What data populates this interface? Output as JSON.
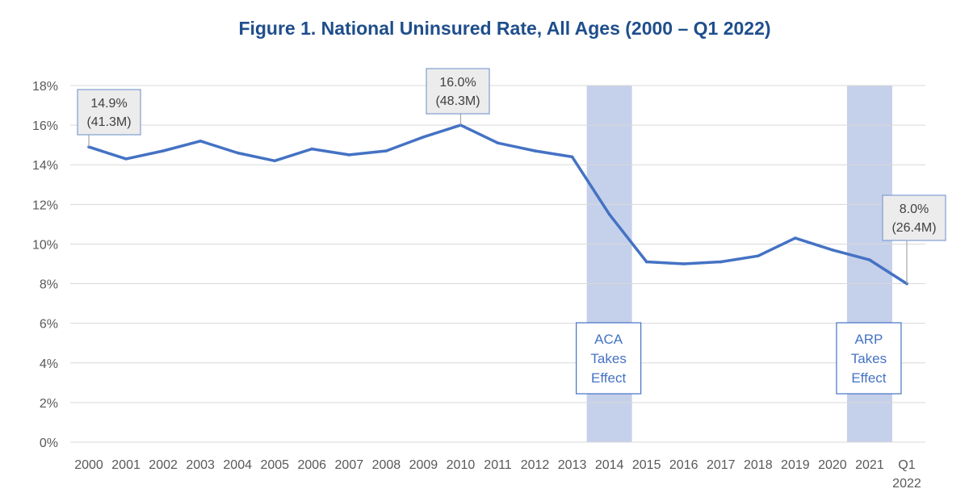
{
  "chart_data": {
    "type": "line",
    "title": "Figure 1. National Uninsured Rate, All Ages (2000 – Q1 2022)",
    "categories": [
      "2000",
      "2001",
      "2002",
      "2003",
      "2004",
      "2005",
      "2006",
      "2007",
      "2008",
      "2009",
      "2010",
      "2011",
      "2012",
      "2013",
      "2014",
      "2015",
      "2016",
      "2017",
      "2018",
      "2019",
      "2020",
      "2021",
      "Q1 2022"
    ],
    "category_lines": [
      [
        "2000"
      ],
      [
        "2001"
      ],
      [
        "2002"
      ],
      [
        "2003"
      ],
      [
        "2004"
      ],
      [
        "2005"
      ],
      [
        "2006"
      ],
      [
        "2007"
      ],
      [
        "2008"
      ],
      [
        "2009"
      ],
      [
        "2010"
      ],
      [
        "2011"
      ],
      [
        "2012"
      ],
      [
        "2013"
      ],
      [
        "2014"
      ],
      [
        "2015"
      ],
      [
        "2016"
      ],
      [
        "2017"
      ],
      [
        "2018"
      ],
      [
        "2019"
      ],
      [
        "2020"
      ],
      [
        "2021"
      ],
      [
        "Q1",
        "2022"
      ]
    ],
    "series": [
      {
        "values": [
          14.9,
          14.3,
          14.7,
          15.2,
          14.6,
          14.2,
          14.8,
          14.5,
          14.7,
          15.4,
          16.0,
          15.1,
          14.7,
          14.4,
          11.5,
          9.1,
          9.0,
          9.1,
          9.4,
          10.3,
          9.7,
          9.2,
          8.0
        ],
        "color": "#4472c4"
      }
    ],
    "ylim": [
      0,
      18
    ],
    "yticks": [
      0,
      2,
      4,
      6,
      8,
      10,
      12,
      14,
      16,
      18
    ],
    "ytick_labels": [
      "0%",
      "2%",
      "4%",
      "6%",
      "8%",
      "10%",
      "12%",
      "14%",
      "16%",
      "18%"
    ],
    "grid": true,
    "shaded_bands": [
      {
        "category": "2014",
        "label_lines": [
          "ACA",
          "Takes",
          "Effect"
        ]
      },
      {
        "category": "2021",
        "label_lines": [
          "ARP",
          "Takes",
          "Effect"
        ]
      }
    ],
    "annotations": [
      {
        "category": "2000",
        "lines": [
          "14.9%",
          "(41.3M)"
        ]
      },
      {
        "category": "2010",
        "lines": [
          "16.0%",
          "(48.3M)"
        ]
      },
      {
        "category": "Q1 2022",
        "lines": [
          "8.0%",
          "(26.4M)"
        ]
      }
    ],
    "colors": {
      "line": "#4472c4",
      "band": "#c5d0ea",
      "grid": "#d9d9d9",
      "title": "#1f4e8c",
      "callout_border": "#7f9ed3",
      "callout_fill": "#ececec"
    }
  }
}
